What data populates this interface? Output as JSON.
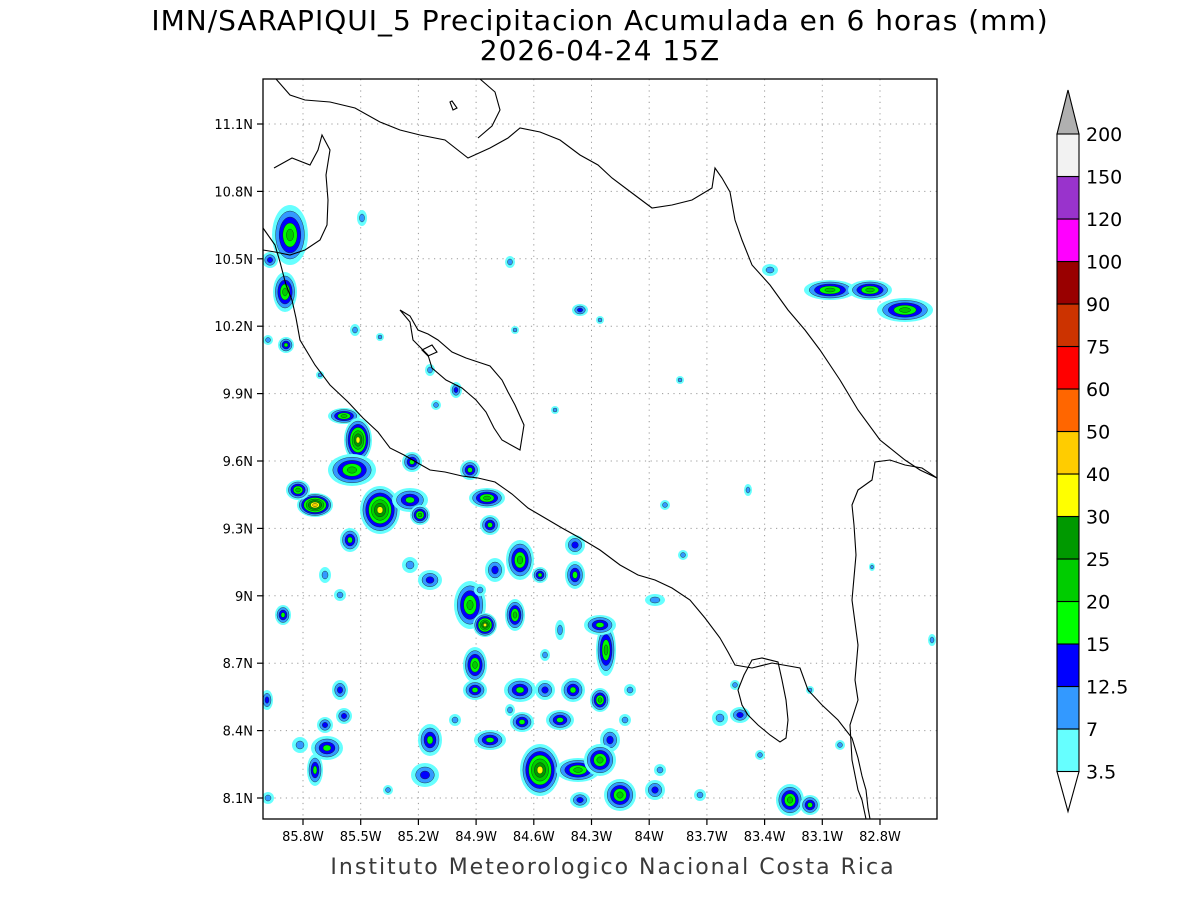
{
  "title": "IMN/SARAPIQUI_5 Precipitacion Acumulada en 6 horas (mm)",
  "subtitle": "2026-04-24 15Z",
  "credit": "Instituto Meteorologico Nacional Costa Rica",
  "lat_labels": [
    "11.1N",
    "10.8N",
    "10.5N",
    "10.2N",
    "9.9N",
    "9.6N",
    "9.3N",
    "9N",
    "8.7N",
    "8.4N",
    "8.1N"
  ],
  "lon_labels": [
    "85.8W",
    "85.5W",
    "85.2W",
    "84.9W",
    "84.6W",
    "84.3W",
    "84W",
    "83.7W",
    "83.4W",
    "83.1W",
    "82.8W"
  ],
  "legend": {
    "levels": [
      "3.5",
      "7",
      "12.5",
      "15",
      "20",
      "25",
      "30",
      "40",
      "50",
      "60",
      "75",
      "90",
      "100",
      "120",
      "150",
      "200"
    ],
    "colors": [
      "#66ffff",
      "#3399ff",
      "#0000ff",
      "#00ff00",
      "#00cc00",
      "#009900",
      "#ffff00",
      "#ffcc00",
      "#ff6600",
      "#ff0000",
      "#cc3300",
      "#990000",
      "#ff00ff",
      "#9933cc",
      "#f2f2f2"
    ],
    "low_arrow_color": "#ffffff",
    "high_arrow_color": "#b0b0b0"
  }
}
